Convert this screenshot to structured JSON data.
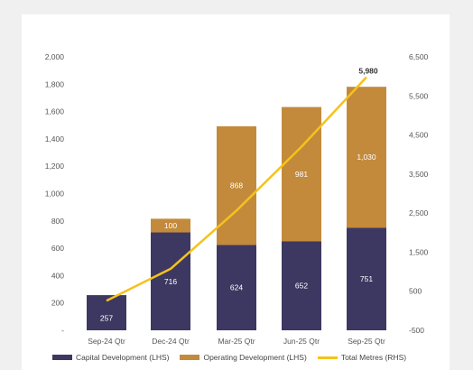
{
  "chart_data": {
    "type": "bar",
    "categories": [
      "Sep-24 Qtr",
      "Dec-24 Qtr",
      "Mar-25 Qtr",
      "Jun-25 Qtr",
      "Sep-25 Qtr"
    ],
    "series": [
      {
        "name": "Capital Development (LHS)",
        "type": "bar",
        "axis": "left",
        "values": [
          257,
          716,
          624,
          652,
          751
        ],
        "color": "#3d3861"
      },
      {
        "name": "Operating Development (LHS)",
        "type": "bar",
        "axis": "left",
        "values": [
          0,
          100,
          868,
          981,
          1030
        ],
        "color": "#c38a3c"
      },
      {
        "name": "Total Metres (RHS)",
        "type": "line",
        "axis": "right",
        "values": [
          257,
          1073,
          2565,
          4198,
          5980
        ],
        "color": "#f5c21b"
      }
    ],
    "stacked": true,
    "labels": {
      "capital": [
        "257",
        "716",
        "624",
        "652",
        "751"
      ],
      "operating": [
        "",
        "100",
        "868",
        "981",
        "1,030"
      ],
      "line_last": "5,980"
    },
    "left_axis": {
      "ticks": [
        "-",
        "200",
        "400",
        "600",
        "800",
        "1,000",
        "1,200",
        "1,400",
        "1,600",
        "1,800",
        "2,000"
      ],
      "ylim": [
        0,
        2000
      ]
    },
    "right_axis": {
      "ticks": [
        "-500",
        "500",
        "1,500",
        "2,500",
        "3,500",
        "4,500",
        "5,500",
        "6,500"
      ],
      "ylim": [
        -500,
        6500
      ]
    },
    "grid": false,
    "legend_position": "bottom"
  }
}
